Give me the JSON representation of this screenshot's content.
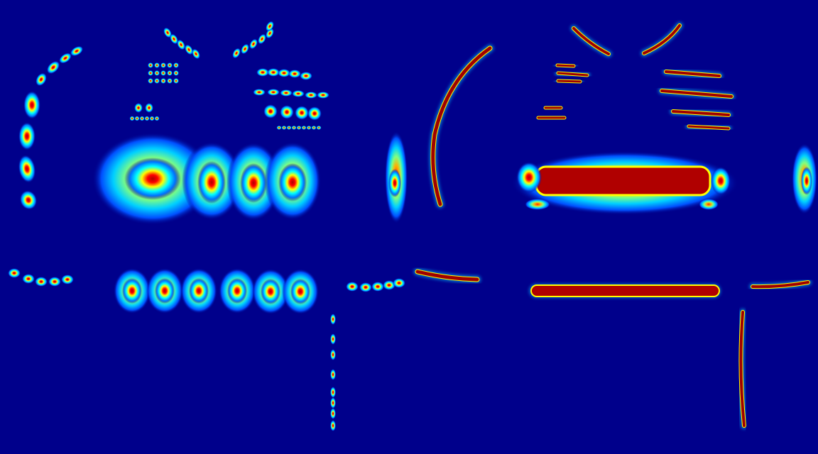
{
  "figure": {
    "layout": "two-panel-heatmap-comparison",
    "colormap": "jet",
    "background_color": "#00008b",
    "colors": {
      "low": "#00008b",
      "mid_low": "#0060ff",
      "mid": "#00ffff",
      "mid_high": "#ffff00",
      "high": "#ff0000",
      "peak": "#800000"
    },
    "panels": [
      {
        "id": "left",
        "style": "discrete-gaussian-blobs",
        "has_text": false
      },
      {
        "id": "right",
        "style": "continuous-dense-strokes",
        "has_text": false
      }
    ]
  }
}
